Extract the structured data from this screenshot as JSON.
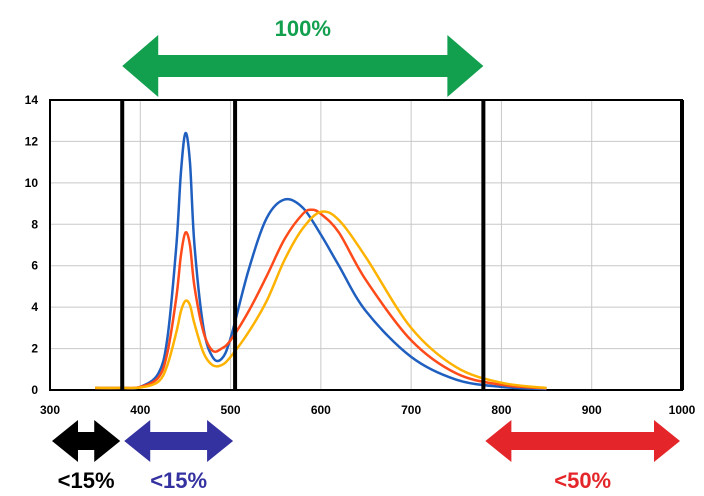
{
  "chart_data": {
    "type": "line",
    "title": "",
    "xlabel": "",
    "ylabel": "",
    "xlim": [
      300,
      1000
    ],
    "ylim": [
      0,
      14
    ],
    "x_ticks": [
      300,
      400,
      500,
      600,
      700,
      800,
      900,
      1000
    ],
    "x_tick_labels": [
      "300",
      "400",
      "500",
      "600",
      "700",
      "800",
      "900",
      "1000"
    ],
    "y_ticks": [
      0,
      2,
      4,
      6,
      8,
      10,
      12,
      14
    ],
    "y_tick_labels": [
      "0",
      "2",
      "4",
      "6",
      "8",
      "10",
      "12",
      "14"
    ],
    "grid": true,
    "legend": "none",
    "series": [
      {
        "color": "#1f5fbf",
        "x": [
          350,
          380,
          400,
          420,
          430,
          440,
          445,
          450,
          455,
          460,
          470,
          480,
          490,
          500,
          520,
          540,
          560,
          580,
          600,
          620,
          650,
          700,
          750,
          800,
          850
        ],
        "y": [
          0.1,
          0.1,
          0.15,
          0.8,
          2.5,
          7.0,
          10.5,
          12.4,
          11.0,
          7.0,
          3.0,
          1.6,
          1.5,
          2.5,
          5.8,
          8.3,
          9.2,
          8.8,
          7.5,
          6.0,
          3.8,
          1.6,
          0.5,
          0.15,
          0.05
        ]
      },
      {
        "color": "#ff4a1a",
        "x": [
          350,
          380,
          400,
          420,
          430,
          440,
          445,
          450,
          455,
          460,
          470,
          480,
          490,
          500,
          520,
          540,
          560,
          580,
          590,
          600,
          620,
          650,
          700,
          750,
          800,
          850
        ],
        "y": [
          0.1,
          0.1,
          0.15,
          0.6,
          1.8,
          4.5,
          6.5,
          7.6,
          7.0,
          5.0,
          2.8,
          1.9,
          2.0,
          2.4,
          3.8,
          5.5,
          7.3,
          8.5,
          8.7,
          8.5,
          7.6,
          5.3,
          2.4,
          0.8,
          0.25,
          0.08
        ]
      },
      {
        "color": "#ffb300",
        "x": [
          350,
          380,
          400,
          420,
          430,
          440,
          445,
          450,
          455,
          460,
          470,
          480,
          490,
          500,
          520,
          540,
          560,
          580,
          600,
          620,
          650,
          700,
          750,
          800,
          850
        ],
        "y": [
          0.1,
          0.1,
          0.12,
          0.4,
          1.2,
          2.8,
          3.8,
          4.3,
          4.1,
          3.2,
          1.8,
          1.2,
          1.2,
          1.6,
          2.8,
          4.3,
          6.3,
          7.8,
          8.6,
          8.2,
          6.4,
          3.0,
          1.1,
          0.35,
          0.1
        ]
      }
    ],
    "vertical_markers": [
      380,
      505,
      780,
      1000
    ],
    "bands": [
      {
        "label": "100%",
        "from": 380,
        "to": 780,
        "color": "#12a04f",
        "position": "top"
      },
      {
        "label": "<15%",
        "from": 300,
        "to": 380,
        "color": "#000000",
        "position": "bottom"
      },
      {
        "label": "<15%",
        "from": 380,
        "to": 505,
        "color": "#3431a0",
        "position": "bottom"
      },
      {
        "label": "<50%",
        "from": 780,
        "to": 1000,
        "color": "#e4262a",
        "position": "bottom"
      }
    ]
  }
}
